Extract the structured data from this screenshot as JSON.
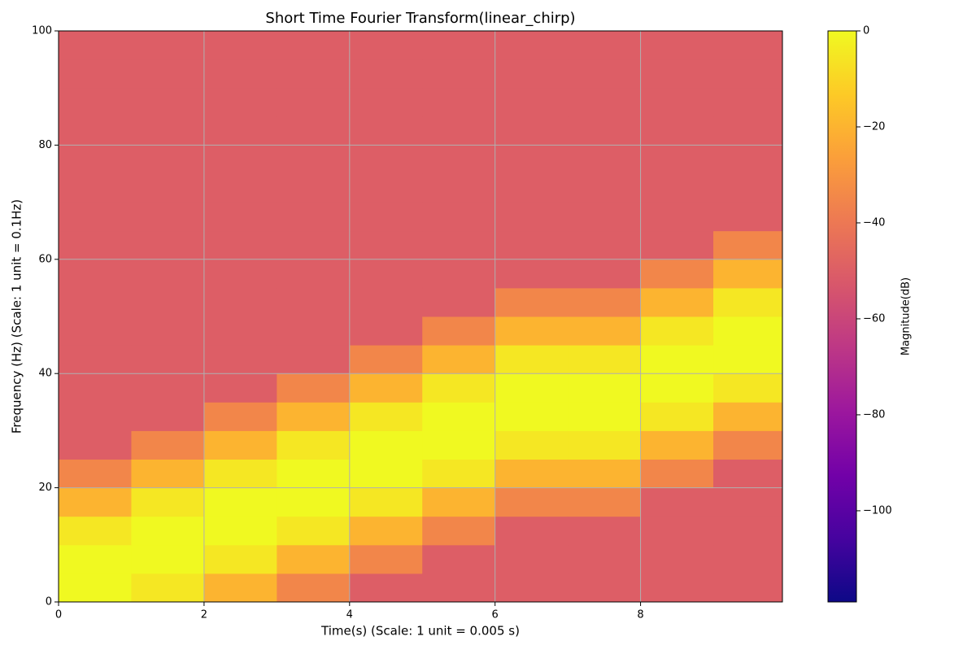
{
  "chart_data": {
    "type": "heatmap",
    "title": "Short Time Fourier Transform(linear_chirp)",
    "x_label": "Time(s) (Scale: 1 unit = 0.005 s)",
    "y_label": "Frequency (Hz) (Scale: 1 unit = 0.1Hz)",
    "colorbar_label": "Magnitude(dB)",
    "colormap": "plasma",
    "x": [
      0,
      1,
      2,
      3,
      4,
      5,
      6,
      7,
      8,
      9,
      9.95
    ],
    "y": [
      0,
      5,
      10,
      15,
      20,
      25,
      30,
      35,
      40,
      45,
      50,
      55,
      60,
      65,
      70,
      75,
      80,
      85,
      90,
      95,
      100
    ],
    "values": [
      [
        0,
        0,
        -5,
        -20,
        -35,
        -50,
        -50,
        -50,
        -50,
        -50,
        -50,
        -50,
        -50,
        -50,
        -50,
        -50,
        -50,
        -50,
        -50,
        -50
      ],
      [
        -5,
        0,
        0,
        -5,
        -20,
        -35,
        -50,
        -50,
        -50,
        -50,
        -50,
        -50,
        -50,
        -50,
        -50,
        -50,
        -50,
        -50,
        -50,
        -50
      ],
      [
        -20,
        -5,
        0,
        0,
        -5,
        -20,
        -35,
        -50,
        -50,
        -50,
        -50,
        -50,
        -50,
        -50,
        -50,
        -50,
        -50,
        -50,
        -50,
        -50
      ],
      [
        -35,
        -20,
        -5,
        0,
        0,
        -5,
        -20,
        -35,
        -50,
        -50,
        -50,
        -50,
        -50,
        -50,
        -50,
        -50,
        -50,
        -50,
        -50,
        -50
      ],
      [
        -50,
        -35,
        -20,
        -5,
        0,
        0,
        -5,
        -20,
        -35,
        -50,
        -50,
        -50,
        -50,
        -50,
        -50,
        -50,
        -50,
        -50,
        -50,
        -50
      ],
      [
        -50,
        -50,
        -35,
        -20,
        -5,
        0,
        0,
        -5,
        -20,
        -35,
        -50,
        -50,
        -50,
        -50,
        -50,
        -50,
        -50,
        -50,
        -50,
        -50
      ],
      [
        -50,
        -50,
        -50,
        -35,
        -20,
        -5,
        0,
        0,
        -5,
        -20,
        -35,
        -50,
        -50,
        -50,
        -50,
        -50,
        -50,
        -50,
        -50,
        -50
      ],
      [
        -50,
        -50,
        -50,
        -35,
        -20,
        -5,
        0,
        0,
        -5,
        -20,
        -35,
        -50,
        -50,
        -50,
        -50,
        -50,
        -50,
        -50,
        -50,
        -50
      ],
      [
        -50,
        -50,
        -50,
        -50,
        -35,
        -20,
        -5,
        0,
        0,
        -5,
        -20,
        -35,
        -50,
        -50,
        -50,
        -50,
        -50,
        -50,
        -50,
        -50
      ],
      [
        -50,
        -50,
        -50,
        -50,
        -50,
        -35,
        -20,
        -5,
        0,
        0,
        -5,
        -20,
        -35,
        -50,
        -50,
        -50,
        -50,
        -50,
        -50,
        -50
      ]
    ],
    "xlim": [
      0,
      9.95
    ],
    "xticks": [
      0,
      2,
      4,
      6,
      8
    ],
    "ylim": [
      0,
      100
    ],
    "yticks": [
      0,
      20,
      40,
      60,
      80,
      100
    ],
    "clim": [
      -119,
      0
    ],
    "cticks": [
      0,
      {
        "value": -20,
        "label": "−20"
      },
      {
        "value": -40,
        "label": "−40"
      },
      {
        "value": -60,
        "label": "−60"
      },
      {
        "value": -80,
        "label": "−80"
      },
      {
        "value": -100,
        "label": "−100"
      }
    ],
    "grid": true
  }
}
